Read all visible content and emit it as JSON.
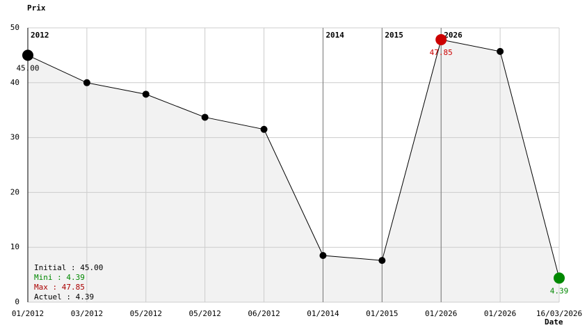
{
  "chart_data": {
    "type": "line",
    "y_label": "Prix",
    "x_label": "Date",
    "categories": [
      "01/2012",
      "03/2012",
      "05/2012",
      "05/2012",
      "06/2012",
      "01/2014",
      "01/2015",
      "01/2026",
      "01/2026",
      "16/03/2026"
    ],
    "values": [
      45.0,
      40.0,
      37.9,
      33.7,
      31.5,
      8.5,
      7.6,
      47.85,
      45.7,
      4.39
    ],
    "value_labels": [
      "45.00",
      null,
      null,
      null,
      null,
      null,
      null,
      "47.85",
      null,
      "4.39"
    ],
    "marker_colors": [
      "#000000",
      "#000000",
      "#000000",
      "#000000",
      "#000000",
      "#000000",
      "#000000",
      "#cc0000",
      "#000000",
      "#008800"
    ],
    "year_labels": [
      "2012",
      null,
      null,
      null,
      null,
      "2014",
      "2015",
      "2026",
      null,
      null
    ],
    "ylim": [
      0,
      50
    ],
    "yticks": [
      0,
      10,
      20,
      30,
      40,
      50
    ],
    "grid": true,
    "color": "#000000",
    "fill": "#f2f2f2",
    "stats": [
      {
        "text": "Initial : 45.00",
        "color": "#000000"
      },
      {
        "text": "Mini : 4.39",
        "color": "#008800"
      },
      {
        "text": "Max : 47.85",
        "color": "#aa0000"
      },
      {
        "text": "Actuel : 4.39",
        "color": "#000000"
      }
    ]
  }
}
